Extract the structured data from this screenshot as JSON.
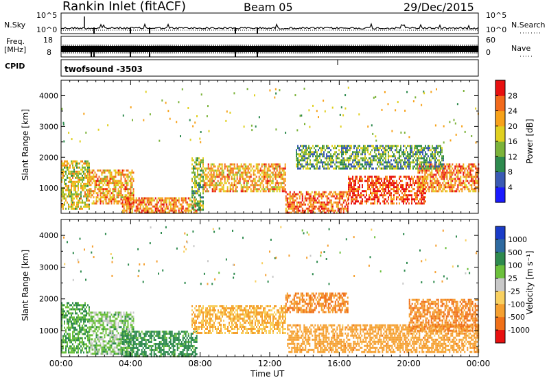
{
  "header": {
    "title": "Rankin Inlet (fitACF)",
    "beam": "Beam 05",
    "date": "29/Dec/2015"
  },
  "strips": {
    "nsky_label": "N.Sky",
    "nsky_top": "10^5",
    "nsky_bottom": "10^0",
    "nsearch_label": "N.Search",
    "freq_label_1": "Freq.",
    "freq_label_2": "[MHz]",
    "freq_top": "18",
    "freq_bottom": "8",
    "nave_top": "60",
    "nave_bottom": "0",
    "nave_label": "Nave",
    "cpid_label": "CPID",
    "cpid_value": "twofsound -3503"
  },
  "panels": {
    "ylabel": "Slant Range [km]",
    "xlabel": "Time UT",
    "power_label": "Power [dB]",
    "velocity_label": "Velocity [m s⁻¹]"
  },
  "chart_data": [
    {
      "type": "heatmap",
      "title": "Power",
      "x_range_hours": [
        0,
        24
      ],
      "x_ticks": [
        "00:00",
        "04:00",
        "08:00",
        "12:00",
        "16:00",
        "20:00",
        "00:00"
      ],
      "y_range_km": [
        180,
        4500
      ],
      "y_ticks": [
        1000,
        2000,
        3000,
        4000
      ],
      "colorbar_label": "Power [dB]",
      "colorbar_ticks": [
        4,
        8,
        12,
        16,
        20,
        24,
        28
      ],
      "colorbar_range": [
        0,
        32
      ],
      "colorbar_colors": [
        "#1a1aff",
        "#3a5ab4",
        "#2e8a4e",
        "#7cb33a",
        "#e0d020",
        "#f7a21a",
        "#f26a1c",
        "#e81010"
      ],
      "regions": [
        {
          "t0": 0.0,
          "t1": 1.6,
          "r0": 300,
          "r1": 1900,
          "power": 18
        },
        {
          "t0": 1.6,
          "t1": 4.2,
          "r0": 500,
          "r1": 1600,
          "power": 22
        },
        {
          "t0": 3.5,
          "t1": 7.8,
          "r0": 200,
          "r1": 700,
          "power": 24
        },
        {
          "t0": 7.5,
          "t1": 8.2,
          "r0": 300,
          "r1": 2000,
          "power": 14
        },
        {
          "t0": 8.2,
          "t1": 12.9,
          "r0": 900,
          "r1": 1800,
          "power": 22
        },
        {
          "t0": 12.9,
          "t1": 16.5,
          "r0": 200,
          "r1": 900,
          "power": 26
        },
        {
          "t0": 16.5,
          "t1": 21.0,
          "r0": 500,
          "r1": 1400,
          "power": 28
        },
        {
          "t0": 20.5,
          "t1": 24.0,
          "r0": 900,
          "r1": 1800,
          "power": 24
        },
        {
          "t0": 13.5,
          "t1": 22.0,
          "r0": 1600,
          "r1": 2400,
          "power": 12
        }
      ]
    },
    {
      "type": "heatmap",
      "title": "Velocity",
      "x_range_hours": [
        0,
        24
      ],
      "x_ticks": [
        "00:00",
        "04:00",
        "08:00",
        "12:00",
        "16:00",
        "20:00",
        "00:00"
      ],
      "y_range_km": [
        180,
        4500
      ],
      "y_ticks": [
        1000,
        2000,
        3000,
        4000
      ],
      "colorbar_label": "Velocity [m s⁻¹]",
      "colorbar_ticks": [
        "1000",
        "500",
        "100",
        "25",
        "-25",
        "-100",
        "-500",
        "-1000"
      ],
      "colorbar_colors": [
        "#1a3cc8",
        "#2e6aa0",
        "#2e8a4e",
        "#6cc03c",
        "#c8c8c8",
        "#f8d060",
        "#f5a030",
        "#f07018",
        "#e81010"
      ],
      "regions": [
        {
          "t0": 0.0,
          "t1": 1.6,
          "r0": 300,
          "r1": 1900,
          "velocity": 100
        },
        {
          "t0": 1.6,
          "t1": 4.2,
          "r0": 300,
          "r1": 1600,
          "velocity": 50
        },
        {
          "t0": 3.5,
          "t1": 7.8,
          "r0": 200,
          "r1": 1000,
          "velocity": 200
        },
        {
          "t0": 7.5,
          "t1": 12.9,
          "r0": 900,
          "r1": 1800,
          "velocity": -100
        },
        {
          "t0": 12.9,
          "t1": 16.5,
          "r0": 1600,
          "r1": 2200,
          "velocity": -500
        },
        {
          "t0": 13.0,
          "t1": 24.0,
          "r0": 300,
          "r1": 1200,
          "velocity": -300
        },
        {
          "t0": 20.0,
          "t1": 24.0,
          "r0": 1000,
          "r1": 2000,
          "velocity": -500
        }
      ]
    }
  ]
}
